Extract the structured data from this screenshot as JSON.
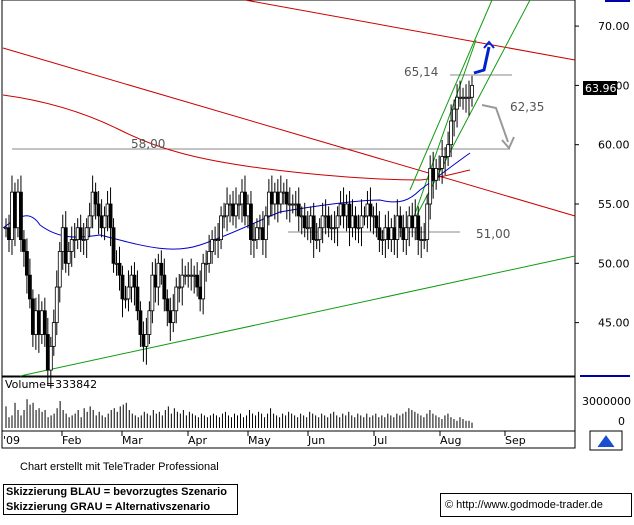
{
  "chart_data": {
    "type": "candlestick",
    "title": "",
    "price_axis": {
      "ticks": [
        "45.00",
        "50.00",
        "55.00",
        "60.00",
        "65.00",
        "70.00"
      ],
      "ylim": [
        40.5,
        72.2
      ]
    },
    "last_price_label": "63.96",
    "volume_axis": {
      "ticks": [
        "3000000",
        "0"
      ]
    },
    "volume_label": "Volume=333842",
    "month_labels": [
      "'09",
      "Feb",
      "Mar",
      "Apr",
      "May",
      "Jun",
      "Jul",
      "Aug",
      "Sep"
    ],
    "annotations": {
      "level_58": "58,00",
      "level_65": "65,14",
      "level_62": "62,35",
      "level_51": "51,00"
    },
    "price_series": [
      53,
      52,
      56,
      53,
      56,
      52,
      51,
      49,
      47,
      44,
      46,
      44,
      46,
      44,
      41,
      43,
      45,
      48,
      51,
      53,
      50,
      51,
      52,
      52,
      53,
      52,
      52,
      53,
      54,
      56,
      55,
      54,
      53,
      54,
      55,
      53,
      50,
      50,
      49,
      47,
      47,
      48,
      49,
      48,
      46,
      44,
      43,
      44,
      46,
      49,
      48,
      50,
      49,
      47,
      46,
      45,
      46,
      48,
      48,
      49,
      49,
      49,
      49,
      49,
      48,
      47,
      50,
      50,
      51,
      52,
      52,
      52,
      54,
      54,
      55,
      55,
      54,
      55,
      55,
      56,
      54,
      55,
      52,
      52,
      53,
      53,
      52,
      54,
      56,
      55,
      56,
      55,
      56,
      56,
      55,
      55,
      55,
      55,
      54,
      54,
      53,
      53,
      54,
      52,
      52,
      53,
      54,
      54,
      53,
      53,
      53,
      54,
      55,
      54,
      55,
      53,
      54,
      53,
      53,
      54,
      54,
      55,
      54,
      54,
      53,
      52,
      52,
      53,
      52,
      53,
      52,
      54,
      53,
      52,
      53,
      54,
      53,
      54,
      52,
      52,
      52,
      55,
      58,
      57,
      58,
      58,
      59,
      59,
      60,
      62,
      63,
      64,
      64,
      64,
      64,
      64,
      65
    ],
    "volume_series": [
      60,
      30,
      35,
      70,
      50,
      35,
      50,
      80,
      65,
      70,
      50,
      55,
      45,
      50,
      30,
      35,
      40,
      55,
      75,
      50,
      40,
      30,
      35,
      40,
      50,
      30,
      55,
      45,
      60,
      50,
      35,
      45,
      35,
      30,
      40,
      50,
      55,
      45,
      60,
      65,
      70,
      50,
      40,
      35,
      30,
      35,
      45,
      40,
      35,
      50,
      40,
      45,
      35,
      50,
      60,
      40,
      55,
      45,
      40,
      50,
      35,
      45,
      40,
      35,
      30,
      40,
      35,
      30,
      35,
      40,
      35,
      30,
      40,
      45,
      35,
      30,
      40,
      35,
      40,
      30,
      35,
      50,
      40,
      35,
      45,
      40,
      30,
      40,
      55,
      40,
      35,
      30,
      40,
      35,
      45,
      40,
      35,
      30,
      40,
      35,
      30,
      45,
      40,
      35,
      30,
      40,
      35,
      30,
      40,
      45,
      35,
      30,
      40,
      35,
      45,
      35,
      30,
      40,
      35,
      30,
      40,
      30,
      35,
      40,
      30,
      35,
      30,
      40,
      35,
      30,
      40,
      35,
      40,
      45,
      55,
      50,
      45,
      40,
      35,
      30,
      40,
      50,
      40,
      35,
      30,
      25,
      35,
      40,
      30,
      25,
      20,
      30,
      25,
      20,
      20,
      15
    ]
  },
  "footer": {
    "credit": "Chart erstellt mit TeleTrader Professional",
    "legend_blue": "Skizzierung BLAU = bevorzugtes Szenario",
    "legend_gray": "Skizzierung GRAU = Alternativszenario",
    "url": "http://www.godmode-trader.de",
    "copyright_symbol": "©"
  },
  "colors": {
    "candles": "#000000",
    "red_lines": "#cc0000",
    "green_lines": "#129a12",
    "blue_ma": "#0000cc",
    "gray_levels": "#777777"
  }
}
